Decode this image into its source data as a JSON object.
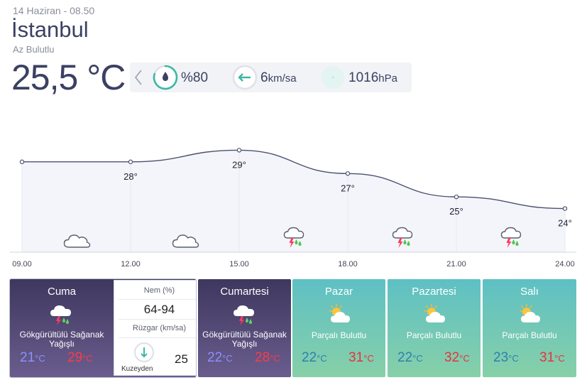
{
  "header": {
    "date": "14 Haziran - 08.50",
    "city": "İstanbul",
    "condition": "Az Bulutlu",
    "temperature": "25,5 °C"
  },
  "metrics": {
    "humidity": "%80",
    "humidity_value": 80,
    "wind_speed": "6",
    "wind_unit": "km/sa",
    "pressure": "1016",
    "pressure_unit": "hPa",
    "icons": [
      "chevron-left-icon",
      "humidity-drop-icon",
      "wind-arrow-icon",
      "pressure-icon"
    ]
  },
  "chart_data": {
    "type": "line",
    "x": [
      "09.00",
      "12.00",
      "15.00",
      "18.00",
      "21.00",
      "24.00"
    ],
    "temp_x": [
      "09.00",
      "12.00",
      "15.00",
      "18.00",
      "21.00",
      "24.00"
    ],
    "y": [
      28,
      28,
      29,
      27,
      25,
      24
    ],
    "point_labels": [
      "",
      "28°",
      "29°",
      "27°",
      "25°",
      "24°"
    ],
    "ylim": [
      23,
      30
    ],
    "icons": [
      "cloudy-icon",
      "cloudy-icon",
      "thunderstorm-icon",
      "thunderstorm-icon",
      "thunderstorm-icon"
    ],
    "line_color": "#4c5170",
    "fill_color": "#f3f5fa"
  },
  "forecast": [
    {
      "day": "Cuma",
      "description": "Gökgürültülü Sağanak Yağışlı",
      "low": "21",
      "high": "29",
      "unit": "°C",
      "icon": "thunderstorm-icon",
      "style": "storm",
      "details": {
        "humidity_label": "Nem (%)",
        "humidity": "64-94",
        "wind_label": "Rüzgar (km/sa)",
        "wind_direction": "Kuzeyden",
        "wind_speed": "25"
      }
    },
    {
      "day": "Cumartesi",
      "description": "Gökgürültülü Sağanak Yağışlı",
      "low": "22",
      "high": "28",
      "unit": "°C",
      "icon": "thunderstorm-icon",
      "style": "storm"
    },
    {
      "day": "Pazar",
      "description": "Parçalı Bulutlu",
      "low": "22",
      "high": "31",
      "unit": "°C",
      "icon": "partly-cloudy-icon",
      "style": "cloud"
    },
    {
      "day": "Pazartesi",
      "description": "Parçalı Bulutlu",
      "low": "22",
      "high": "32",
      "unit": "°C",
      "icon": "partly-cloudy-icon",
      "style": "cloud"
    },
    {
      "day": "Salı",
      "description": "Parçalı Bulutlu",
      "low": "23",
      "high": "31",
      "unit": "°C",
      "icon": "partly-cloudy-icon",
      "style": "cloud"
    }
  ],
  "colors": {
    "storm_gradient": [
      "#3e375e",
      "#6a5d8e"
    ],
    "cloud_gradient": [
      "#5ec0c4",
      "#87d0a8"
    ],
    "low_temp_storm": "#8e8fff",
    "high_temp": "#e8313d",
    "humidity_ring": "#3ab8a4"
  }
}
